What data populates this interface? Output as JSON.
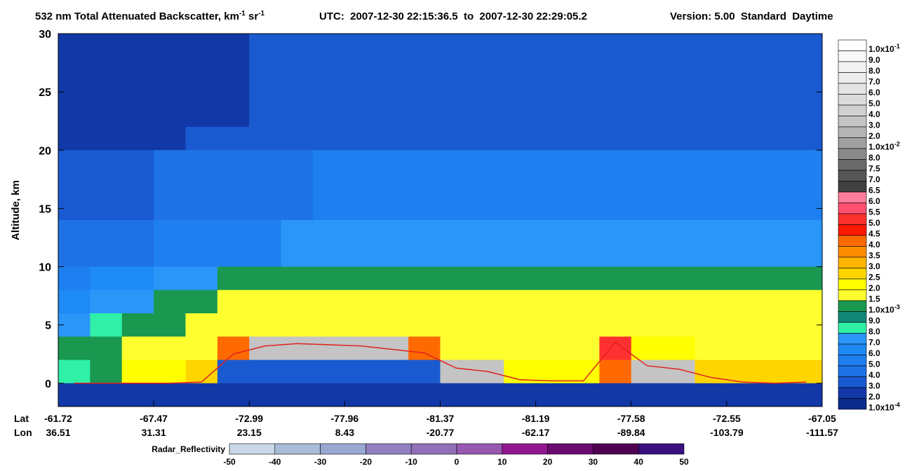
{
  "chart_data": {
    "type": "heatmap",
    "title": [
      "532 nm Total Attenuated Backscatter, km",
      "-1",
      " sr",
      "-1"
    ],
    "subtitle": "UTC:  2007-12-30 22:15:36.5  to  2007-12-30 22:29:05.2",
    "version": "Version: 5.00  Standard  Daytime",
    "ylabel": "Altitude, km",
    "ylim": [
      -2,
      30
    ],
    "yticks": [
      0,
      5,
      10,
      15,
      20,
      25,
      30
    ],
    "ybins": [
      30,
      28,
      26,
      24,
      22,
      20,
      18,
      16,
      14,
      12,
      10,
      8,
      6,
      4,
      2,
      0,
      -2
    ],
    "x_lat_label": "Lat",
    "x_lon_label": "Lon",
    "x_lat": [
      -61.72,
      -67.47,
      -72.99,
      -77.96,
      -81.37,
      -81.19,
      -77.58,
      -72.55,
      -67.05
    ],
    "x_lon": [
      36.51,
      31.31,
      23.15,
      8.43,
      -20.77,
      -62.17,
      -89.84,
      -103.79,
      -111.57
    ],
    "z": [
      [
        0.0002,
        0.0002,
        0.0002,
        0.0002,
        0.0002,
        0.0002,
        0.0003,
        0.0003,
        0.0003,
        0.0003,
        0.0003,
        0.0003,
        0.0003,
        0.0003,
        0.0003,
        0.0003,
        0.0003,
        0.0003,
        0.0003,
        0.0003,
        0.0003,
        0.0003,
        0.0003,
        0.0003
      ],
      [
        0.0002,
        0.0002,
        0.0002,
        0.0002,
        0.0002,
        0.0002,
        0.0003,
        0.0003,
        0.0003,
        0.0003,
        0.0003,
        0.0003,
        0.0003,
        0.0003,
        0.0003,
        0.0003,
        0.0003,
        0.0003,
        0.0003,
        0.0003,
        0.0003,
        0.0003,
        0.0003,
        0.0003
      ],
      [
        0.0002,
        0.0002,
        0.0002,
        0.0002,
        0.0002,
        0.0002,
        0.0003,
        0.0003,
        0.0003,
        0.0003,
        0.0003,
        0.0003,
        0.0003,
        0.0003,
        0.0003,
        0.0003,
        0.0003,
        0.0003,
        0.0003,
        0.0003,
        0.0003,
        0.0003,
        0.0003,
        0.0003
      ],
      [
        0.0002,
        0.0002,
        0.0002,
        0.0002,
        0.0002,
        0.0002,
        0.0003,
        0.0003,
        0.0003,
        0.0003,
        0.0003,
        0.0003,
        0.0003,
        0.0003,
        0.0003,
        0.0003,
        0.0003,
        0.0003,
        0.0003,
        0.0003,
        0.0003,
        0.0003,
        0.0003,
        0.0003
      ],
      [
        0.0002,
        0.0002,
        0.0002,
        0.0002,
        0.0003,
        0.0003,
        0.0003,
        0.0003,
        0.0003,
        0.0003,
        0.0003,
        0.0003,
        0.0003,
        0.0003,
        0.0003,
        0.0003,
        0.0003,
        0.0003,
        0.0003,
        0.0003,
        0.0003,
        0.0003,
        0.0003,
        0.0003
      ],
      [
        0.0003,
        0.0003,
        0.0003,
        0.0004,
        0.0004,
        0.0004,
        0.0004,
        0.0004,
        0.0005,
        0.0005,
        0.0005,
        0.0005,
        0.0005,
        0.0005,
        0.0005,
        0.0005,
        0.0005,
        0.0005,
        0.0005,
        0.0005,
        0.0005,
        0.0005,
        0.0005,
        0.0005
      ],
      [
        0.0003,
        0.0003,
        0.0003,
        0.0004,
        0.0004,
        0.0004,
        0.0004,
        0.0004,
        0.0005,
        0.0005,
        0.0005,
        0.0005,
        0.0005,
        0.0005,
        0.0005,
        0.0005,
        0.0005,
        0.0005,
        0.0005,
        0.0005,
        0.0005,
        0.0005,
        0.0005,
        0.0005
      ],
      [
        0.0003,
        0.0003,
        0.0003,
        0.0004,
        0.0004,
        0.0004,
        0.0004,
        0.0004,
        0.0005,
        0.0005,
        0.0005,
        0.0005,
        0.0005,
        0.0005,
        0.0005,
        0.0005,
        0.0005,
        0.0005,
        0.0005,
        0.0005,
        0.0005,
        0.0005,
        0.0005,
        0.0005
      ],
      [
        0.0004,
        0.0004,
        0.0004,
        0.0005,
        0.0005,
        0.0005,
        0.0005,
        0.0007,
        0.0007,
        0.0007,
        0.0007,
        0.0007,
        0.0007,
        0.0007,
        0.0007,
        0.0007,
        0.0007,
        0.0007,
        0.0007,
        0.0007,
        0.0007,
        0.0007,
        0.0007,
        0.0007
      ],
      [
        0.0004,
        0.0004,
        0.0004,
        0.0005,
        0.0005,
        0.0005,
        0.0005,
        0.0007,
        0.0007,
        0.0007,
        0.0007,
        0.0007,
        0.0007,
        0.0007,
        0.0007,
        0.0007,
        0.0007,
        0.0007,
        0.0007,
        0.0007,
        0.0007,
        0.0007,
        0.0007,
        0.0007
      ],
      [
        0.0005,
        0.0006,
        0.0006,
        0.0007,
        0.0007,
        0.001,
        0.001,
        0.001,
        0.001,
        0.001,
        0.001,
        0.001,
        0.001,
        0.001,
        0.001,
        0.001,
        0.001,
        0.001,
        0.001,
        0.001,
        0.001,
        0.001,
        0.001,
        0.001
      ],
      [
        0.0006,
        0.0007,
        0.0007,
        0.001,
        0.001,
        0.0015,
        0.0015,
        0.0015,
        0.0015,
        0.0015,
        0.0015,
        0.0015,
        0.0015,
        0.0015,
        0.0015,
        0.0015,
        0.0015,
        0.0015,
        0.0015,
        0.0015,
        0.0015,
        0.0015,
        0.0015,
        0.0015
      ],
      [
        0.0007,
        0.0008,
        0.001,
        0.001,
        0.0015,
        0.0015,
        0.0015,
        0.0015,
        0.0015,
        0.0015,
        0.0015,
        0.0015,
        0.0015,
        0.0015,
        0.0015,
        0.0015,
        0.0015,
        0.0015,
        0.0015,
        0.0015,
        0.0015,
        0.0015,
        0.0015,
        0.0015
      ],
      [
        0.001,
        0.001,
        0.0015,
        0.0015,
        0.0015,
        0.004,
        0.03,
        0.03,
        0.03,
        0.03,
        0.03,
        0.004,
        0.0015,
        0.0015,
        0.0015,
        0.0015,
        0.0015,
        0.005,
        0.002,
        0.002,
        0.0015,
        0.0015,
        0.0015,
        0.0015
      ],
      [
        0.0008,
        0.001,
        0.002,
        0.002,
        0.0025,
        0.0003,
        0.0003,
        0.0003,
        0.0003,
        0.0003,
        0.0003,
        0.0003,
        0.03,
        0.03,
        0.002,
        0.002,
        0.002,
        0.004,
        0.03,
        0.03,
        0.0025,
        0.0025,
        0.0025,
        0.0025
      ],
      [
        0.0002,
        0.0002,
        0.0002,
        0.0002,
        0.0002,
        0.0002,
        0.0002,
        0.0002,
        0.0002,
        0.0002,
        0.0002,
        0.0002,
        0.0002,
        0.0002,
        0.0002,
        0.0002,
        0.0002,
        0.0002,
        0.0002,
        0.0002,
        0.0002,
        0.0002,
        0.0002,
        0.0002
      ]
    ],
    "line": {
      "color": "#e02020",
      "values": [
        0,
        0,
        0,
        0,
        0.1,
        2.5,
        3.2,
        3.4,
        3.3,
        3.2,
        2.9,
        2.6,
        1.3,
        1.0,
        0.3,
        0.2,
        0.2,
        3.5,
        1.5,
        1.2,
        0.5,
        0.1,
        0,
        0.1
      ]
    },
    "levels": [
      {
        "value": 0.1,
        "label": "1.0x10",
        "sup": "-1",
        "color": "#ffffff"
      },
      {
        "value": 0.09,
        "label": "9.0",
        "color": "#f8f8f8"
      },
      {
        "value": 0.08,
        "label": "8.0",
        "color": "#f2f2f2"
      },
      {
        "value": 0.07,
        "label": "7.0",
        "color": "#ececec"
      },
      {
        "value": 0.06,
        "label": "6.0",
        "color": "#e4e4e4"
      },
      {
        "value": 0.05,
        "label": "5.0",
        "color": "#dcdcdc"
      },
      {
        "value": 0.04,
        "label": "4.0",
        "color": "#d0d0d0"
      },
      {
        "value": 0.03,
        "label": "3.0",
        "color": "#c4c4c4"
      },
      {
        "value": 0.02,
        "label": "2.0",
        "color": "#b4b4b4"
      },
      {
        "value": 0.01,
        "label": "1.0x10",
        "sup": "-2",
        "color": "#a0a0a0"
      },
      {
        "value": 0.008,
        "label": "8.0",
        "color": "#8a8a8a"
      },
      {
        "value": 0.0075,
        "label": "7.5",
        "color": "#6a6a6a"
      },
      {
        "value": 0.007,
        "label": "7.0",
        "color": "#555555"
      },
      {
        "value": 0.0065,
        "label": "6.5",
        "color": "#404040"
      },
      {
        "value": 0.006,
        "label": "6.0",
        "color": "#ff7c9c"
      },
      {
        "value": 0.0055,
        "label": "5.5",
        "color": "#ff5070"
      },
      {
        "value": 0.005,
        "label": "5.0",
        "color": "#ff3030"
      },
      {
        "value": 0.0045,
        "label": "4.5",
        "color": "#ff1800"
      },
      {
        "value": 0.004,
        "label": "4.0",
        "color": "#ff6a00"
      },
      {
        "value": 0.0035,
        "label": "3.5",
        "color": "#ff8c00"
      },
      {
        "value": 0.003,
        "label": "3.0",
        "color": "#ffb400"
      },
      {
        "value": 0.0025,
        "label": "2.5",
        "color": "#ffd500"
      },
      {
        "value": 0.002,
        "label": "2.0",
        "color": "#ffff00"
      },
      {
        "value": 0.0015,
        "label": "1.5",
        "color": "#ffff30"
      },
      {
        "value": 0.001,
        "label": "1.0x10",
        "sup": "-3",
        "color": "#1a9850"
      },
      {
        "value": 0.0009,
        "label": "9.0",
        "color": "#108878"
      },
      {
        "value": 0.0008,
        "label": "8.0",
        "color": "#30f0a8"
      },
      {
        "value": 0.0007,
        "label": "7.0",
        "color": "#2a96f8"
      },
      {
        "value": 0.0006,
        "label": "6.0",
        "color": "#1e8af4"
      },
      {
        "value": 0.0005,
        "label": "5.0",
        "color": "#1e80f0"
      },
      {
        "value": 0.0004,
        "label": "4.0",
        "color": "#1e72e6"
      },
      {
        "value": 0.0003,
        "label": "3.0",
        "color": "#1a5ad0"
      },
      {
        "value": 0.0002,
        "label": "2.0",
        "color": "#1238a8"
      },
      {
        "value": 0.0001,
        "label": "1.0x10",
        "sup": "-4",
        "color": "#0a2a8c"
      }
    ],
    "radar": {
      "label": "Radar_Reflectivity",
      "ticks": [
        -50,
        -40,
        -30,
        -20,
        -10,
        0,
        10,
        20,
        30,
        40,
        50
      ],
      "colors": [
        "#c8d8e8",
        "#a8bcd8",
        "#98a8d0",
        "#9080c0",
        "#9070b8",
        "#9858b0",
        "#901890",
        "#6a0a70",
        "#500050",
        "#3a1080"
      ]
    }
  }
}
